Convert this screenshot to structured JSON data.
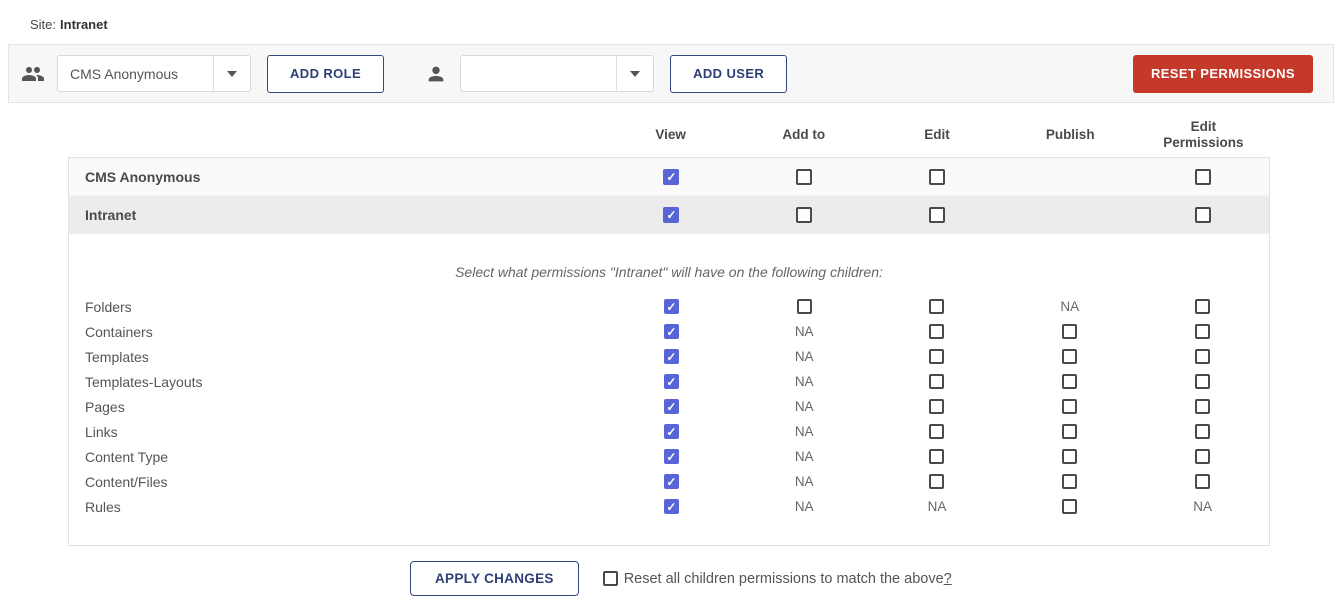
{
  "site": {
    "prefix": "Site:",
    "name": "Intranet"
  },
  "toolbar": {
    "role_select_value": "CMS Anonymous",
    "add_role_label": "ADD ROLE",
    "user_select_value": "",
    "add_user_label": "ADD USER",
    "reset_permissions_label": "RESET PERMISSIONS"
  },
  "colors": {
    "accent_blue": "#5865d6",
    "danger_red": "#c5392b",
    "navy_outline": "#2e3f74",
    "shaded_row": "#ececec"
  },
  "table": {
    "columns": [
      "View",
      "Add to",
      "Edit",
      "Publish",
      "Edit Permissions"
    ],
    "na_label": "NA",
    "rows": [
      {
        "label": "CMS Anonymous",
        "shaded": false,
        "cells": [
          "checked",
          "unchecked",
          "unchecked",
          "blank",
          "unchecked"
        ]
      },
      {
        "label": "Intranet",
        "shaded": true,
        "cells": [
          "checked",
          "unchecked",
          "unchecked",
          "blank",
          "unchecked"
        ]
      }
    ],
    "children_note": "Select what permissions \"Intranet\" will have on the following children:",
    "children": [
      {
        "label": "Folders",
        "cells": [
          "checked",
          "unchecked",
          "unchecked",
          "na",
          "unchecked"
        ]
      },
      {
        "label": "Containers",
        "cells": [
          "checked",
          "na",
          "unchecked",
          "unchecked",
          "unchecked"
        ]
      },
      {
        "label": "Templates",
        "cells": [
          "checked",
          "na",
          "unchecked",
          "unchecked",
          "unchecked"
        ]
      },
      {
        "label": "Templates-Layouts",
        "cells": [
          "checked",
          "na",
          "unchecked",
          "unchecked",
          "unchecked"
        ]
      },
      {
        "label": "Pages",
        "cells": [
          "checked",
          "na",
          "unchecked",
          "unchecked",
          "unchecked"
        ]
      },
      {
        "label": "Links",
        "cells": [
          "checked",
          "na",
          "unchecked",
          "unchecked",
          "unchecked"
        ]
      },
      {
        "label": "Content Type",
        "cells": [
          "checked",
          "na",
          "unchecked",
          "unchecked",
          "unchecked"
        ]
      },
      {
        "label": "Content/Files",
        "cells": [
          "checked",
          "na",
          "unchecked",
          "unchecked",
          "unchecked"
        ]
      },
      {
        "label": "Rules",
        "cells": [
          "checked",
          "na",
          "na",
          "unchecked",
          "na"
        ]
      }
    ]
  },
  "footer": {
    "apply_label": "APPLY CHANGES",
    "reset_children_label": "Reset all children permissions to match the above",
    "reset_children_suffix": "?",
    "reset_children_checked": false
  }
}
